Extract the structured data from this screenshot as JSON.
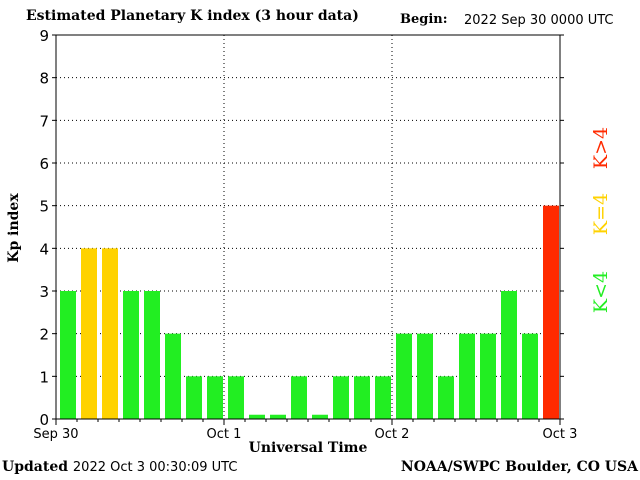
{
  "header": {
    "title": "Estimated Planetary K index (3 hour data)",
    "begin_label": "Begin:",
    "begin_value": "2022 Sep 30 0000 UTC"
  },
  "footer": {
    "updated_label": "Updated",
    "updated_value": "2022 Oct  3 00:30:09 UTC",
    "source": "NOAA/SWPC Boulder, CO USA"
  },
  "legend": [
    {
      "label": "K<4",
      "color": "#22ee22"
    },
    {
      "label": "K=4",
      "color": "#ffd200"
    },
    {
      "label": "K>4",
      "color": "#ff2a00"
    }
  ],
  "chart_data": {
    "type": "bar",
    "title": "Estimated Planetary K index (3 hour data)",
    "xlabel": "Universal Time",
    "ylabel": "Kp index",
    "ylim": [
      0,
      9
    ],
    "yticks": [
      0,
      1,
      2,
      3,
      4,
      5,
      6,
      7,
      8,
      9
    ],
    "x_tick_labels": [
      "Sep 30",
      "Oct 1",
      "Oct 2",
      "Oct 3"
    ],
    "grid": "dotted vertical at day boundaries, dotted horizontal at each Kp level",
    "bars_per_day": 8,
    "values": [
      3,
      4,
      4,
      3,
      3,
      2,
      1,
      1,
      1,
      0.1,
      0.1,
      1,
      0.1,
      1,
      1,
      1,
      2,
      2,
      1,
      2,
      2,
      3,
      2,
      5
    ],
    "colors": {
      "below_4": "#22ee22",
      "equal_4": "#ffd200",
      "above_4": "#ff2a00"
    }
  }
}
